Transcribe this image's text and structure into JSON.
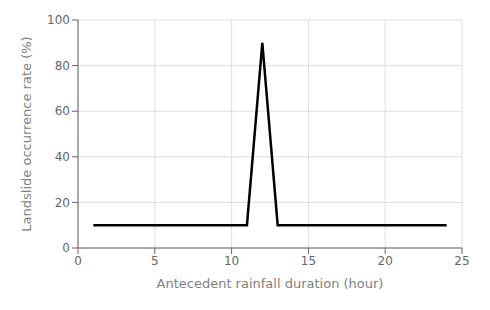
{
  "chart_data": {
    "type": "line",
    "x": [
      1,
      11,
      12,
      13,
      24
    ],
    "values": [
      10,
      10,
      90,
      10,
      10
    ],
    "color": "#000000",
    "xlim": [
      0,
      25
    ],
    "ylim": [
      0,
      100
    ],
    "xticks": [
      0,
      5,
      10,
      15,
      20,
      25
    ],
    "yticks": [
      0,
      20,
      40,
      60,
      80,
      100
    ],
    "xlabel": "Antecedent rainfall duration (hour)",
    "ylabel": "Landslide occurrence rate (%)",
    "grid": true
  }
}
